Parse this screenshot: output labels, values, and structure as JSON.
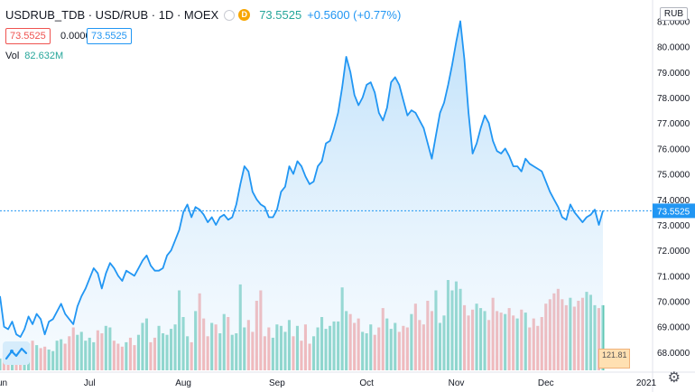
{
  "header": {
    "symbol": "USDRUB_TDB · USD/RUB · 1D · MOEX",
    "last": "73.5525",
    "change": "+0.5600 (+0.77%)",
    "bid": "73.5525",
    "spread": "0.0000",
    "ask": "73.5525",
    "volume_label": "Vol",
    "volume_value": "82.632M",
    "currency": "RUB",
    "badge_letter": "D",
    "flag_box_text": "121.81"
  },
  "colors": {
    "line": "#2196f3",
    "area": "#c9e6fb",
    "vol_up": "#5fc6b3",
    "vol_down": "#f49a9a",
    "price_label_bg": "#2196f3",
    "axis_text": "#131722"
  },
  "chart_data": {
    "type": "area",
    "title": "",
    "xlabel": "",
    "ylabel": "",
    "ylim": [
      67.5,
      81.3
    ],
    "y_ticks": [
      "81.0000",
      "80.0000",
      "79.0000",
      "78.0000",
      "77.0000",
      "76.0000",
      "75.0000",
      "74.0000",
      "73.0000",
      "72.0000",
      "71.0000",
      "70.0000",
      "69.0000",
      "68.0000"
    ],
    "x_ticks": [
      "Jun",
      "Jul",
      "Aug",
      "Sep",
      "Oct",
      "Nov",
      "Dec",
      "2021"
    ],
    "last_price_label": "73.5525",
    "last_price": 73.5525,
    "series": [
      {
        "values": [
          70.2,
          69.0,
          68.9,
          69.2,
          68.7,
          68.6,
          68.9,
          69.4,
          69.1,
          69.5,
          69.3,
          68.7,
          69.2,
          69.3,
          69.6,
          69.9,
          69.5,
          69.3,
          69.1,
          69.8,
          70.2,
          70.5,
          70.9,
          71.3,
          71.1,
          70.5,
          71.1,
          71.5,
          71.3,
          71.0,
          70.8,
          71.2,
          71.1,
          71.0,
          71.3,
          71.6,
          71.8,
          71.4,
          71.2,
          71.2,
          71.3,
          71.8,
          72.0,
          72.4,
          72.8,
          73.5,
          73.8,
          73.3,
          73.7,
          73.6,
          73.4,
          73.1,
          73.3,
          73.0,
          73.3,
          73.4,
          73.2,
          73.3,
          73.8,
          74.6,
          75.3,
          75.1,
          74.3,
          74.0,
          73.8,
          73.7,
          73.3,
          73.3,
          73.6,
          74.3,
          74.5,
          75.3,
          75.0,
          75.5,
          75.3,
          74.9,
          74.6,
          74.7,
          75.3,
          75.5,
          76.2,
          76.3,
          76.8,
          77.4,
          78.4,
          79.6,
          79.0,
          78.1,
          77.7,
          78.0,
          78.5,
          78.6,
          78.2,
          77.4,
          77.1,
          77.6,
          78.6,
          78.8,
          78.5,
          77.9,
          77.3,
          77.5,
          77.4,
          77.1,
          76.8,
          76.2,
          75.6,
          76.5,
          77.4,
          77.8,
          78.5,
          79.3,
          80.2,
          81.0,
          79.5,
          77.4,
          75.8,
          76.2,
          76.8,
          77.3,
          77.0,
          76.3,
          75.9,
          75.8,
          76.0,
          75.7,
          75.3,
          75.3,
          75.1,
          75.6,
          75.4,
          75.3,
          75.2,
          75.1,
          74.7,
          74.3,
          74.0,
          73.7,
          73.3,
          73.2,
          73.8,
          73.5,
          73.3,
          73.1,
          73.3,
          73.4,
          73.6,
          73.0,
          73.5525
        ]
      }
    ],
    "volume": {
      "values": [
        0.8,
        1.2,
        1.0,
        1.5,
        1.6,
        1.3,
        1.4,
        1.8,
        2.0,
        1.7,
        1.5,
        1.6,
        1.4,
        1.3,
        2.0,
        2.1,
        1.8,
        2.3,
        2.9,
        2.4,
        2.6,
        2.0,
        2.2,
        1.9,
        2.7,
        2.5,
        3.0,
        2.9,
        2.0,
        1.8,
        1.6,
        1.9,
        2.2,
        1.7,
        2.4,
        3.2,
        3.5,
        1.9,
        2.2,
        3.0,
        2.5,
        2.4,
        2.8,
        3.1,
        5.4,
        3.6,
        2.3,
        1.9,
        4.0,
        5.2,
        3.5,
        2.3,
        3.2,
        3.1,
        2.5,
        3.8,
        3.6,
        2.4,
        2.5,
        5.8,
        2.9,
        3.4,
        2.6,
        4.7,
        5.4,
        2.3,
        2.9,
        2.2,
        3.1,
        3.0,
        2.6,
        3.4,
        2.3,
        3.0,
        2.0,
        3.1,
        1.8,
        2.3,
        2.9,
        3.6,
        2.8,
        3.0,
        3.3,
        3.3,
        5.6,
        4.0,
        3.8,
        3.2,
        3.5,
        2.6,
        2.5,
        3.1,
        2.4,
        2.9,
        4.2,
        3.5,
        2.8,
        3.2,
        2.6,
        3.0,
        2.9,
        3.8,
        4.5,
        3.4,
        3.1,
        4.7,
        4.0,
        5.4,
        3.2,
        3.7,
        6.1,
        5.4,
        6.0,
        5.5,
        4.4,
        3.7,
        4.1,
        4.5,
        4.2,
        4.0,
        3.4,
        4.9,
        4.0,
        3.9,
        3.8,
        4.2,
        3.7,
        3.5,
        4.1,
        3.9,
        2.9,
        3.5,
        3.0,
        3.6,
        4.5,
        4.8,
        5.2,
        5.5,
        4.8,
        4.4,
        4.9,
        4.3,
        4.7,
        4.9,
        5.3,
        5.1,
        4.4,
        4.2,
        4.4
      ]
    }
  }
}
